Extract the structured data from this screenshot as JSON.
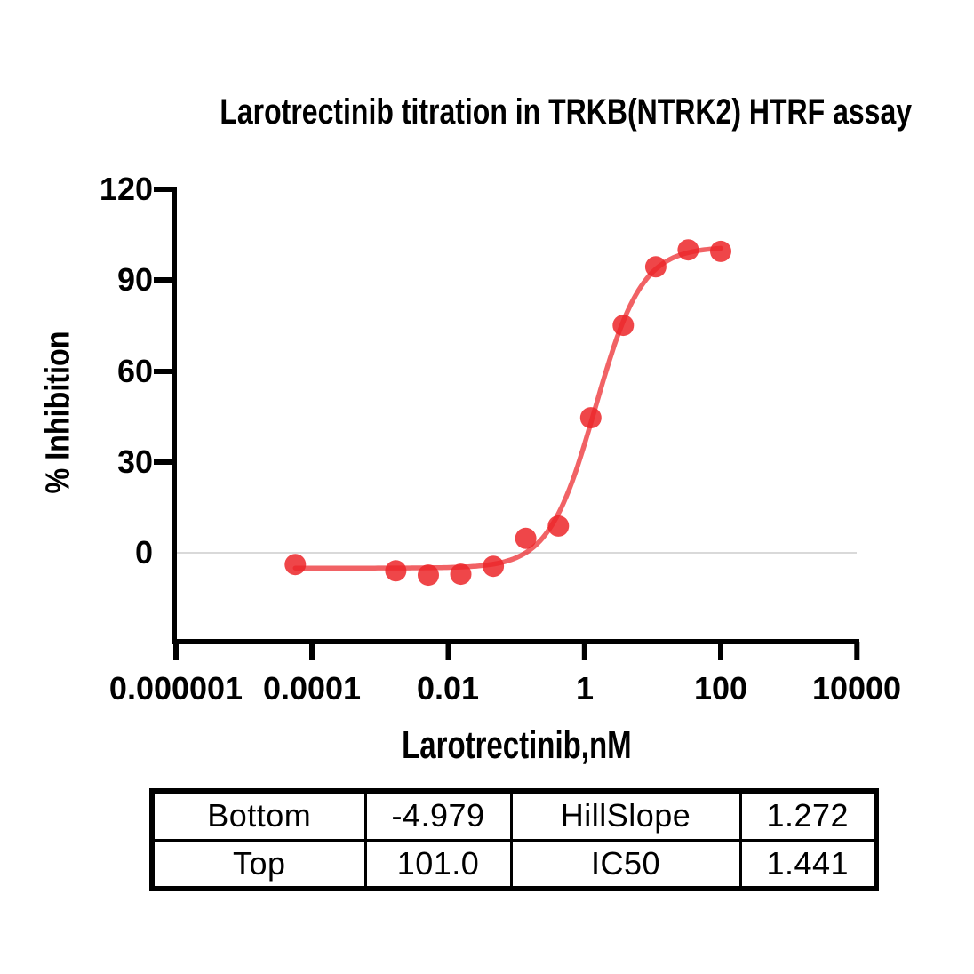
{
  "chart_data": {
    "type": "scatter",
    "title": "Larotrectinib titration in TRKB(NTRK2) HTRF assay",
    "xlabel": "Larotrectinib,nM",
    "ylabel": "% Inhibition",
    "x_scale": "log10",
    "xlim": [
      1e-06,
      10000
    ],
    "ylim": [
      -29,
      120
    ],
    "x_tick_labels": [
      "0.000001",
      "0.0001",
      "0.01",
      "1",
      "100",
      "10000"
    ],
    "y_tick_labels": [
      "120",
      "90",
      "60",
      "30",
      "0"
    ],
    "y_ticks": [
      120,
      90,
      60,
      30,
      0
    ],
    "grid": "baseline-at-zero-only",
    "legend": "none",
    "accent_color": "#ec2629",
    "baseline_color": "#d9d9d9",
    "series": [
      {
        "name": "Larotrectinib",
        "marker": "circle",
        "color": "#ec2629",
        "x_nM": [
          5.65e-05,
          0.00169,
          0.00508,
          0.0152,
          0.0457,
          0.137,
          0.412,
          1.235,
          3.7,
          11.1,
          33.3,
          100
        ],
        "y_pct_inhibition": [
          -3.8,
          -5.9,
          -7.3,
          -7.0,
          -4.4,
          4.8,
          8.9,
          44.6,
          75.1,
          94.4,
          100.0,
          99.5
        ]
      }
    ],
    "fit_curve": {
      "model": "four-parameter logistic (4PL)",
      "bottom": -4.979,
      "top": 101.0,
      "hillslope": 1.272,
      "ic50_nM": 1.441,
      "x_range_nM": [
        5.65e-05,
        100
      ],
      "color": "#ec2629"
    }
  },
  "results_table": {
    "rows": [
      [
        "Bottom",
        "-4.979",
        "HillSlope",
        "1.272"
      ],
      [
        "Top",
        "101.0",
        "IC50",
        "1.441"
      ]
    ]
  }
}
